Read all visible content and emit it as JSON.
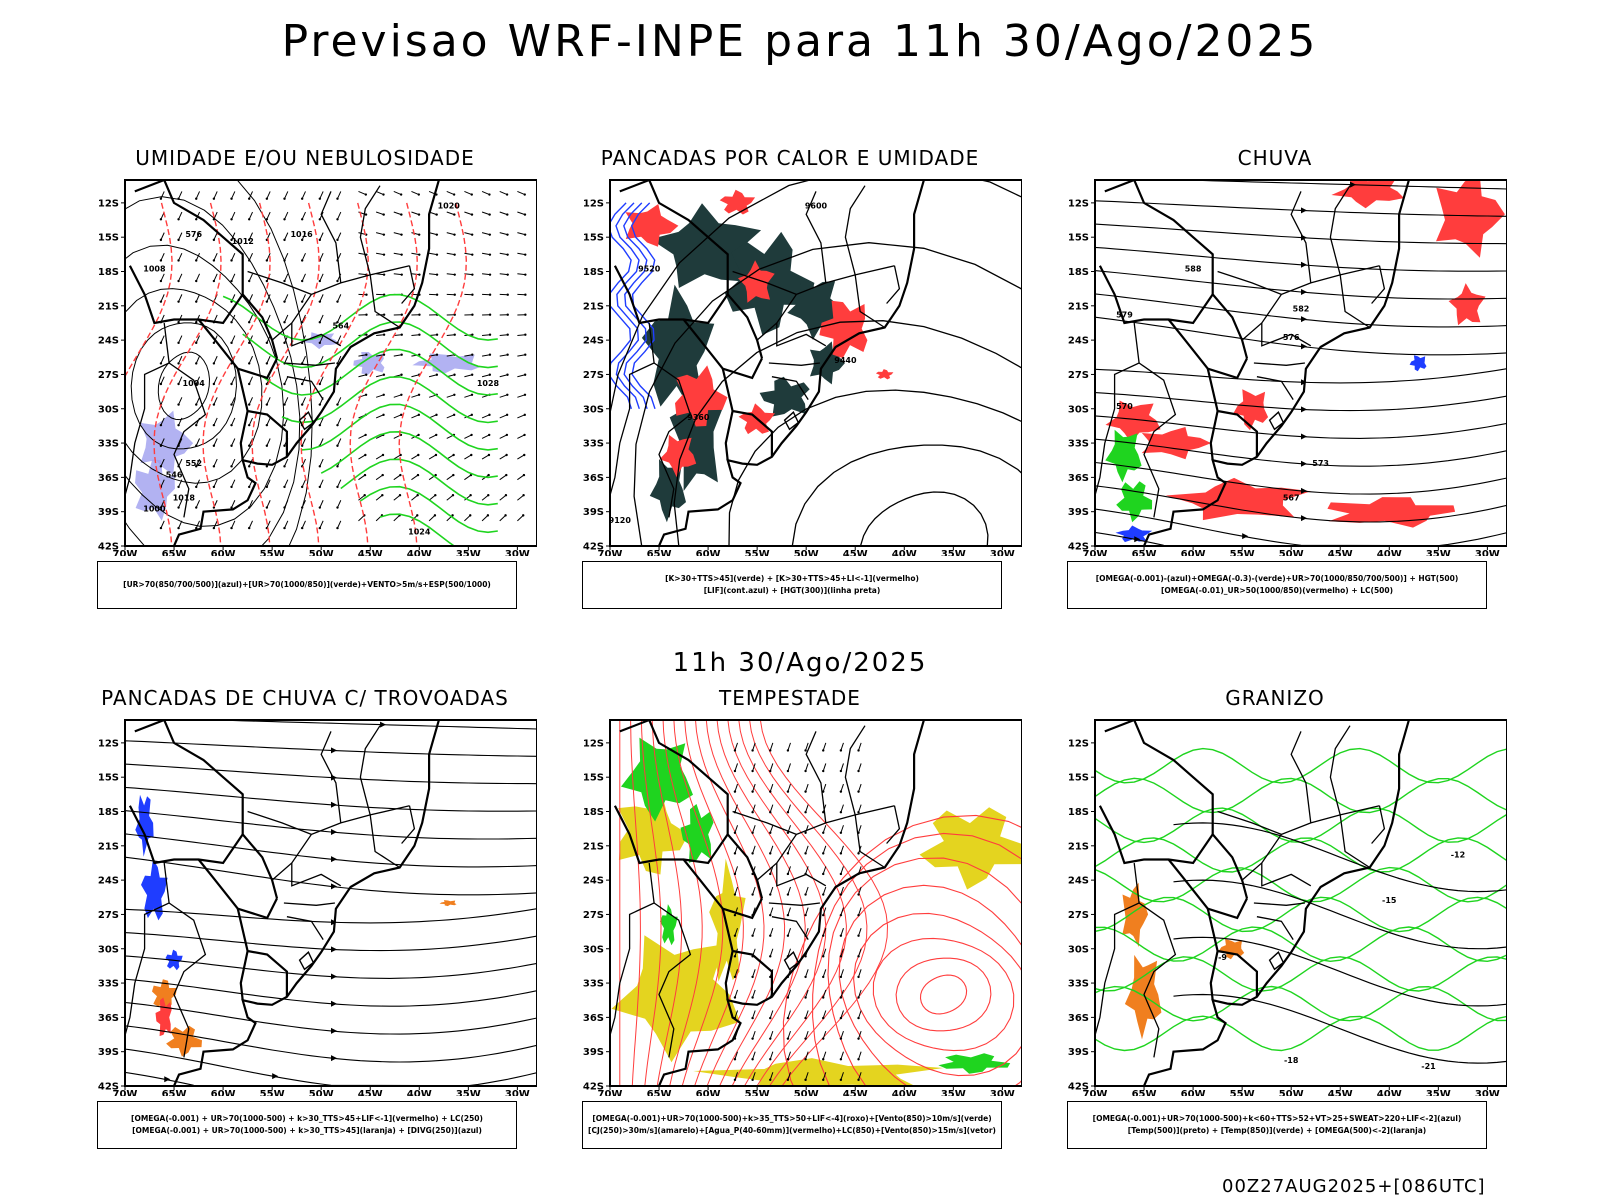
{
  "title": "Previsao WRF-INPE  para 11h 30/Ago/2025",
  "subtitle": "11h 30/Ago/2025",
  "footer": "00Z27AUG2025+[086UTC]",
  "axes": {
    "lat_ticks": [
      "12S",
      "15S",
      "18S",
      "21S",
      "24S",
      "27S",
      "30S",
      "33S",
      "36S",
      "39S",
      "42S"
    ],
    "lon_ticks": [
      "70W",
      "65W",
      "60W",
      "55W",
      "50W",
      "45W",
      "40W",
      "35W",
      "30W"
    ]
  },
  "colors": {
    "blue": "#1f3dff",
    "green": "#1fd41f",
    "red": "#ff3d3d",
    "dark_teal": "#1f3b3b",
    "lavender": "#9f9fef",
    "yellow": "#e4d41f",
    "orange": "#f07f1f"
  },
  "panels": [
    {
      "title": "UMIDADE E/OU NEBULOSIDADE",
      "legend": [
        "[UR>70(850/700/500)](azul)+[UR>70(1000/850)](verde)+VENTO>5m/s+ESP(500/1000)"
      ],
      "contour_labels": [
        "1020",
        "1016",
        "1012",
        "1008",
        "1004",
        "1028",
        "1024",
        "576",
        "564",
        "552",
        "546",
        "1000",
        "1018"
      ]
    },
    {
      "title": "PANCADAS POR CALOR E UMIDADE",
      "legend": [
        "[K>30+TTS>45](verde) + [K>30+TTS>45+LI<-1](vermelho)",
        "[LIF](cont.azul) + [HGT(300)](linha preta)"
      ],
      "contour_labels": [
        "9600",
        "9520",
        "9440",
        "9360",
        "9280",
        "9120"
      ]
    },
    {
      "title": "CHUVA",
      "legend": [
        "[OMEGA(-0.001)-(azul)+OMEGA(-0.3)-(verde)+UR>70(1000/850/700/500)] + HGT(500)",
        "[OMEGA(-0.01)_UR>50(1000/850)(vermelho) + LC(500)"
      ],
      "contour_labels": [
        "582",
        "579",
        "576",
        "573",
        "588",
        "567",
        "570"
      ]
    },
    {
      "title": "PANCADAS DE CHUVA C/ TROVOADAS",
      "legend": [
        "[OMEGA(-0.001) + UR>70(1000-500) + k>30_TTS>45+LIF<-1](vermelho) + LC(250)",
        "[OMEGA(-0.001) + UR>70(1000-500) + k>30_TTS>45](laranja) + [DIVG(250)](azul)"
      ],
      "contour_labels": []
    },
    {
      "title": "TEMPESTADE",
      "legend": [
        "[OMEGA(-0.001)+UR>70(1000-500)+k>35_TTS>50+LIF<-4](roxo)+[Vento(850)>10m/s](verde)",
        "[CJ(250)>30m/s](amarelo)+[Agua_P(40-60mm)](vermelho)+LC(850)+[Vento(850)>15m/s](vetor)"
      ],
      "contour_labels": []
    },
    {
      "title": "GRANIZO",
      "legend": [
        "[OMEGA(-0.001)+UR>70(1000-500)+k<60+TTS>52+VT>25+SWEAT>220+LIF<-2](azul)",
        "[Temp(500)](preto) + [Temp(850)](verde) + [OMEGA(500)<-2](laranja)"
      ],
      "contour_labels": [
        "-12",
        "-15",
        "-18",
        "-21",
        "-9"
      ]
    }
  ]
}
